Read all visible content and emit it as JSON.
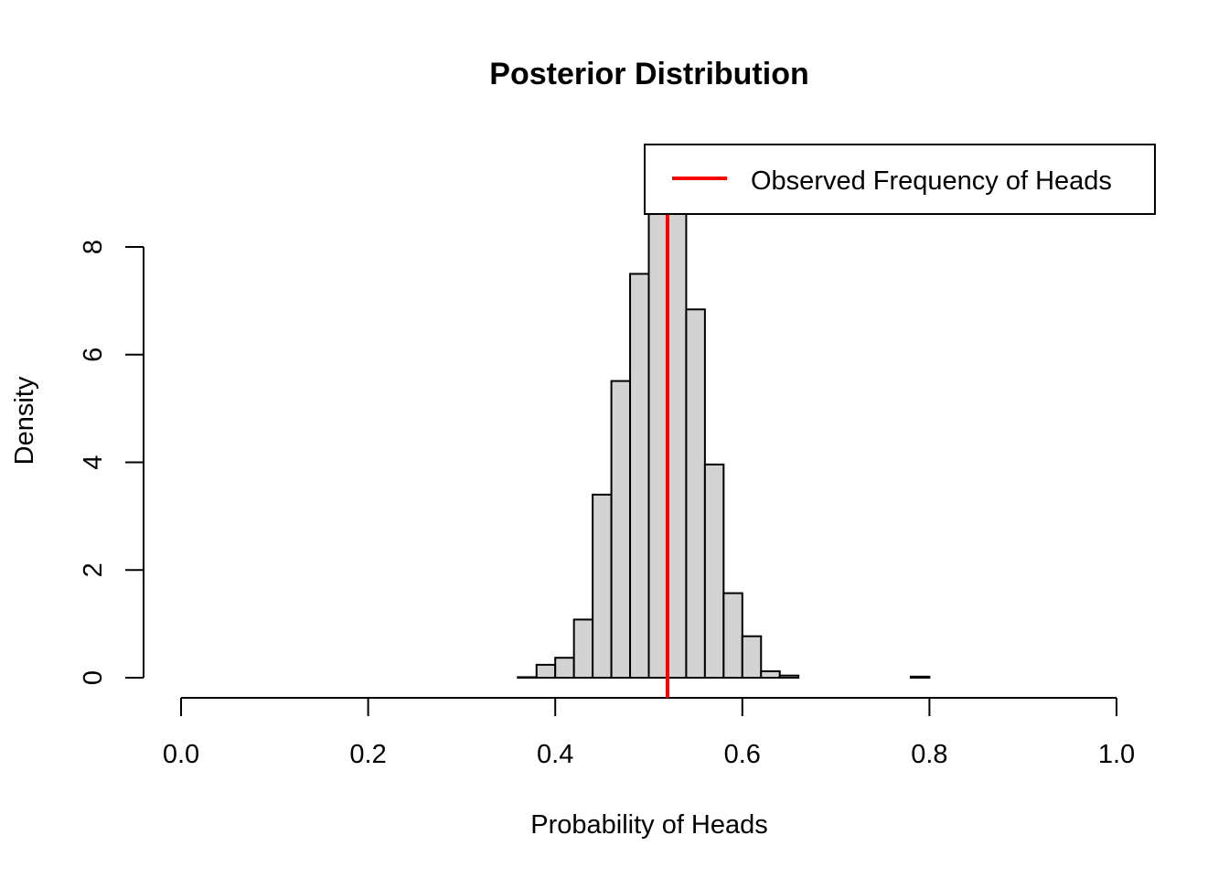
{
  "chart_data": {
    "type": "bar",
    "title": "Posterior Distribution",
    "xlabel": "Probability of Heads",
    "ylabel": "Density",
    "xlim": [
      0,
      1
    ],
    "ylim": [
      0,
      8
    ],
    "x_ticks": [
      "0.0",
      "0.2",
      "0.4",
      "0.6",
      "0.8",
      "1.0"
    ],
    "y_ticks": [
      "0",
      "2",
      "4",
      "6",
      "8"
    ],
    "bin_width": 0.02,
    "bins_start": [
      0.36,
      0.38,
      0.4,
      0.42,
      0.44,
      0.46,
      0.48,
      0.5,
      0.52,
      0.54,
      0.56,
      0.58,
      0.6,
      0.62,
      0.64,
      0.66,
      0.68,
      0.7,
      0.72,
      0.74,
      0.76,
      0.78,
      0.8,
      0.82,
      0.84,
      0.86,
      0.88,
      0.9,
      0.92
    ],
    "values": [
      0.01,
      0.24,
      0.37,
      1.08,
      3.4,
      5.51,
      7.5,
      9.5,
      9.07,
      6.84,
      3.96,
      1.57,
      0.77,
      0.12,
      0.04,
      0,
      0,
      0,
      0,
      0,
      0,
      0.02,
      0,
      0,
      0,
      0,
      0,
      0,
      0
    ],
    "bar_fill": "#d3d3d3",
    "vline": {
      "x": 0.52,
      "color": "#ff0000"
    },
    "legend": {
      "label": "Observed Frequency of Heads",
      "placement": "top-right",
      "color": "#ff0000"
    },
    "grid": false
  }
}
